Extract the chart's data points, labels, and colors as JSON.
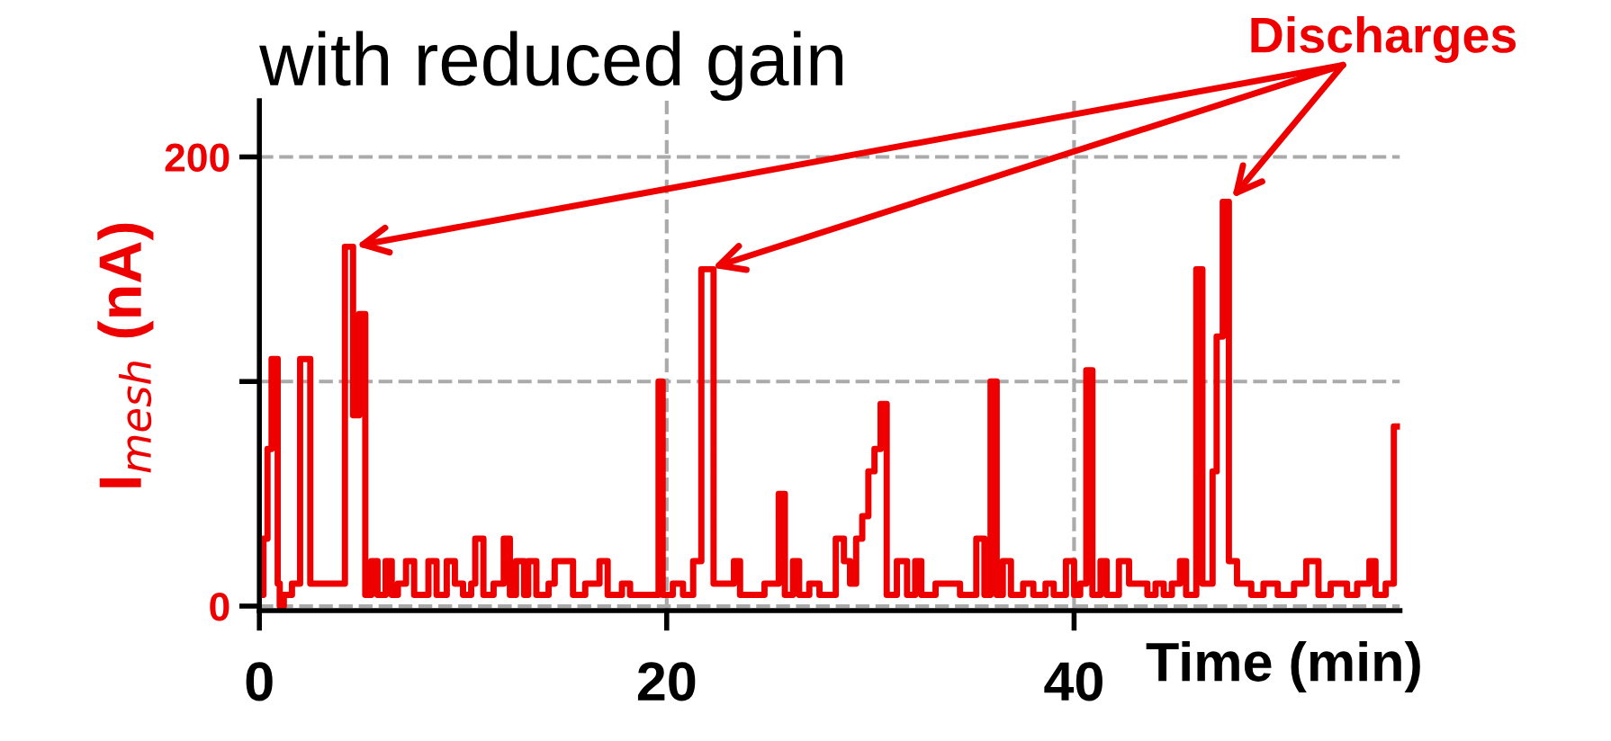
{
  "chart_data": {
    "type": "step",
    "title": "with reduced gain",
    "xlabel": "Time (min)",
    "ylabel": "I$_{mesh}$ (nA)",
    "xlim": [
      0,
      56
    ],
    "ylim": [
      -2,
      225
    ],
    "xticks": [
      0,
      20,
      40
    ],
    "yticks": [
      0,
      {
        "value": 100,
        "label": null
      },
      200
    ],
    "grid": true,
    "marker": "none",
    "x": [
      0,
      0.2,
      0.4,
      0.6,
      0.9,
      1.0,
      1.2,
      1.6,
      2.0,
      2.5,
      4.2,
      4.6,
      4.9,
      5.2,
      5.5,
      5.8,
      6.2,
      6.5,
      6.8,
      7.2,
      7.6,
      8.3,
      8.7,
      9.2,
      9.6,
      10.0,
      10.4,
      10.6,
      11.0,
      11.5,
      12.0,
      12.3,
      12.6,
      13.0,
      13.2,
      13.6,
      14.2,
      14.5,
      15.4,
      16.0,
      16.7,
      17.1,
      17.8,
      18.2,
      19.6,
      19.8,
      20.3,
      20.8,
      21.3,
      21.7,
      22.3,
      23.3,
      23.6,
      24.8,
      25.5,
      25.8,
      26.2,
      26.5,
      27.0,
      27.5,
      28.3,
      28.7,
      29.0,
      29.3,
      29.6,
      29.9,
      30.2,
      30.5,
      30.8,
      31.3,
      31.8,
      32.2,
      32.5,
      33.2,
      34.4,
      35.2,
      35.6,
      35.9,
      36.2,
      36.5,
      36.9,
      37.5,
      38.0,
      38.6,
      39.0,
      39.6,
      40.0,
      40.3,
      40.6,
      40.9,
      41.3,
      41.6,
      42.2,
      42.7,
      43.6,
      44.0,
      44.4,
      44.8,
      45.2,
      45.5,
      46.0,
      46.3,
      46.8,
      47.0,
      47.3,
      47.6,
      48.0,
      48.7,
      49.3,
      50.0,
      50.8,
      51.4,
      52.0,
      52.6,
      53.4,
      53.9,
      54.5,
      54.8,
      55.3,
      55.7,
      56.0
    ],
    "series": [
      {
        "color": "#ee0000",
        "values": [
          5,
          30,
          70,
          110,
          10,
          0,
          5,
          10,
          110,
          10,
          160,
          85,
          130,
          5,
          20,
          5,
          20,
          5,
          10,
          20,
          5,
          20,
          5,
          20,
          10,
          5,
          10,
          30,
          5,
          10,
          30,
          5,
          20,
          5,
          20,
          5,
          10,
          20,
          5,
          10,
          20,
          5,
          10,
          5,
          100,
          5,
          10,
          5,
          20,
          150,
          10,
          20,
          5,
          10,
          50,
          5,
          20,
          5,
          10,
          5,
          30,
          20,
          10,
          30,
          40,
          60,
          70,
          90,
          5,
          20,
          5,
          20,
          5,
          10,
          5,
          30,
          5,
          100,
          5,
          20,
          5,
          10,
          5,
          10,
          5,
          20,
          5,
          10,
          105,
          5,
          20,
          5,
          20,
          10,
          5,
          10,
          5,
          10,
          20,
          5,
          150,
          10,
          60,
          120,
          180,
          20,
          10,
          5,
          10,
          5,
          10,
          20,
          5,
          10,
          5,
          10,
          20,
          5,
          10,
          80,
          80
        ]
      }
    ],
    "annotations": [
      "Discharges"
    ]
  }
}
